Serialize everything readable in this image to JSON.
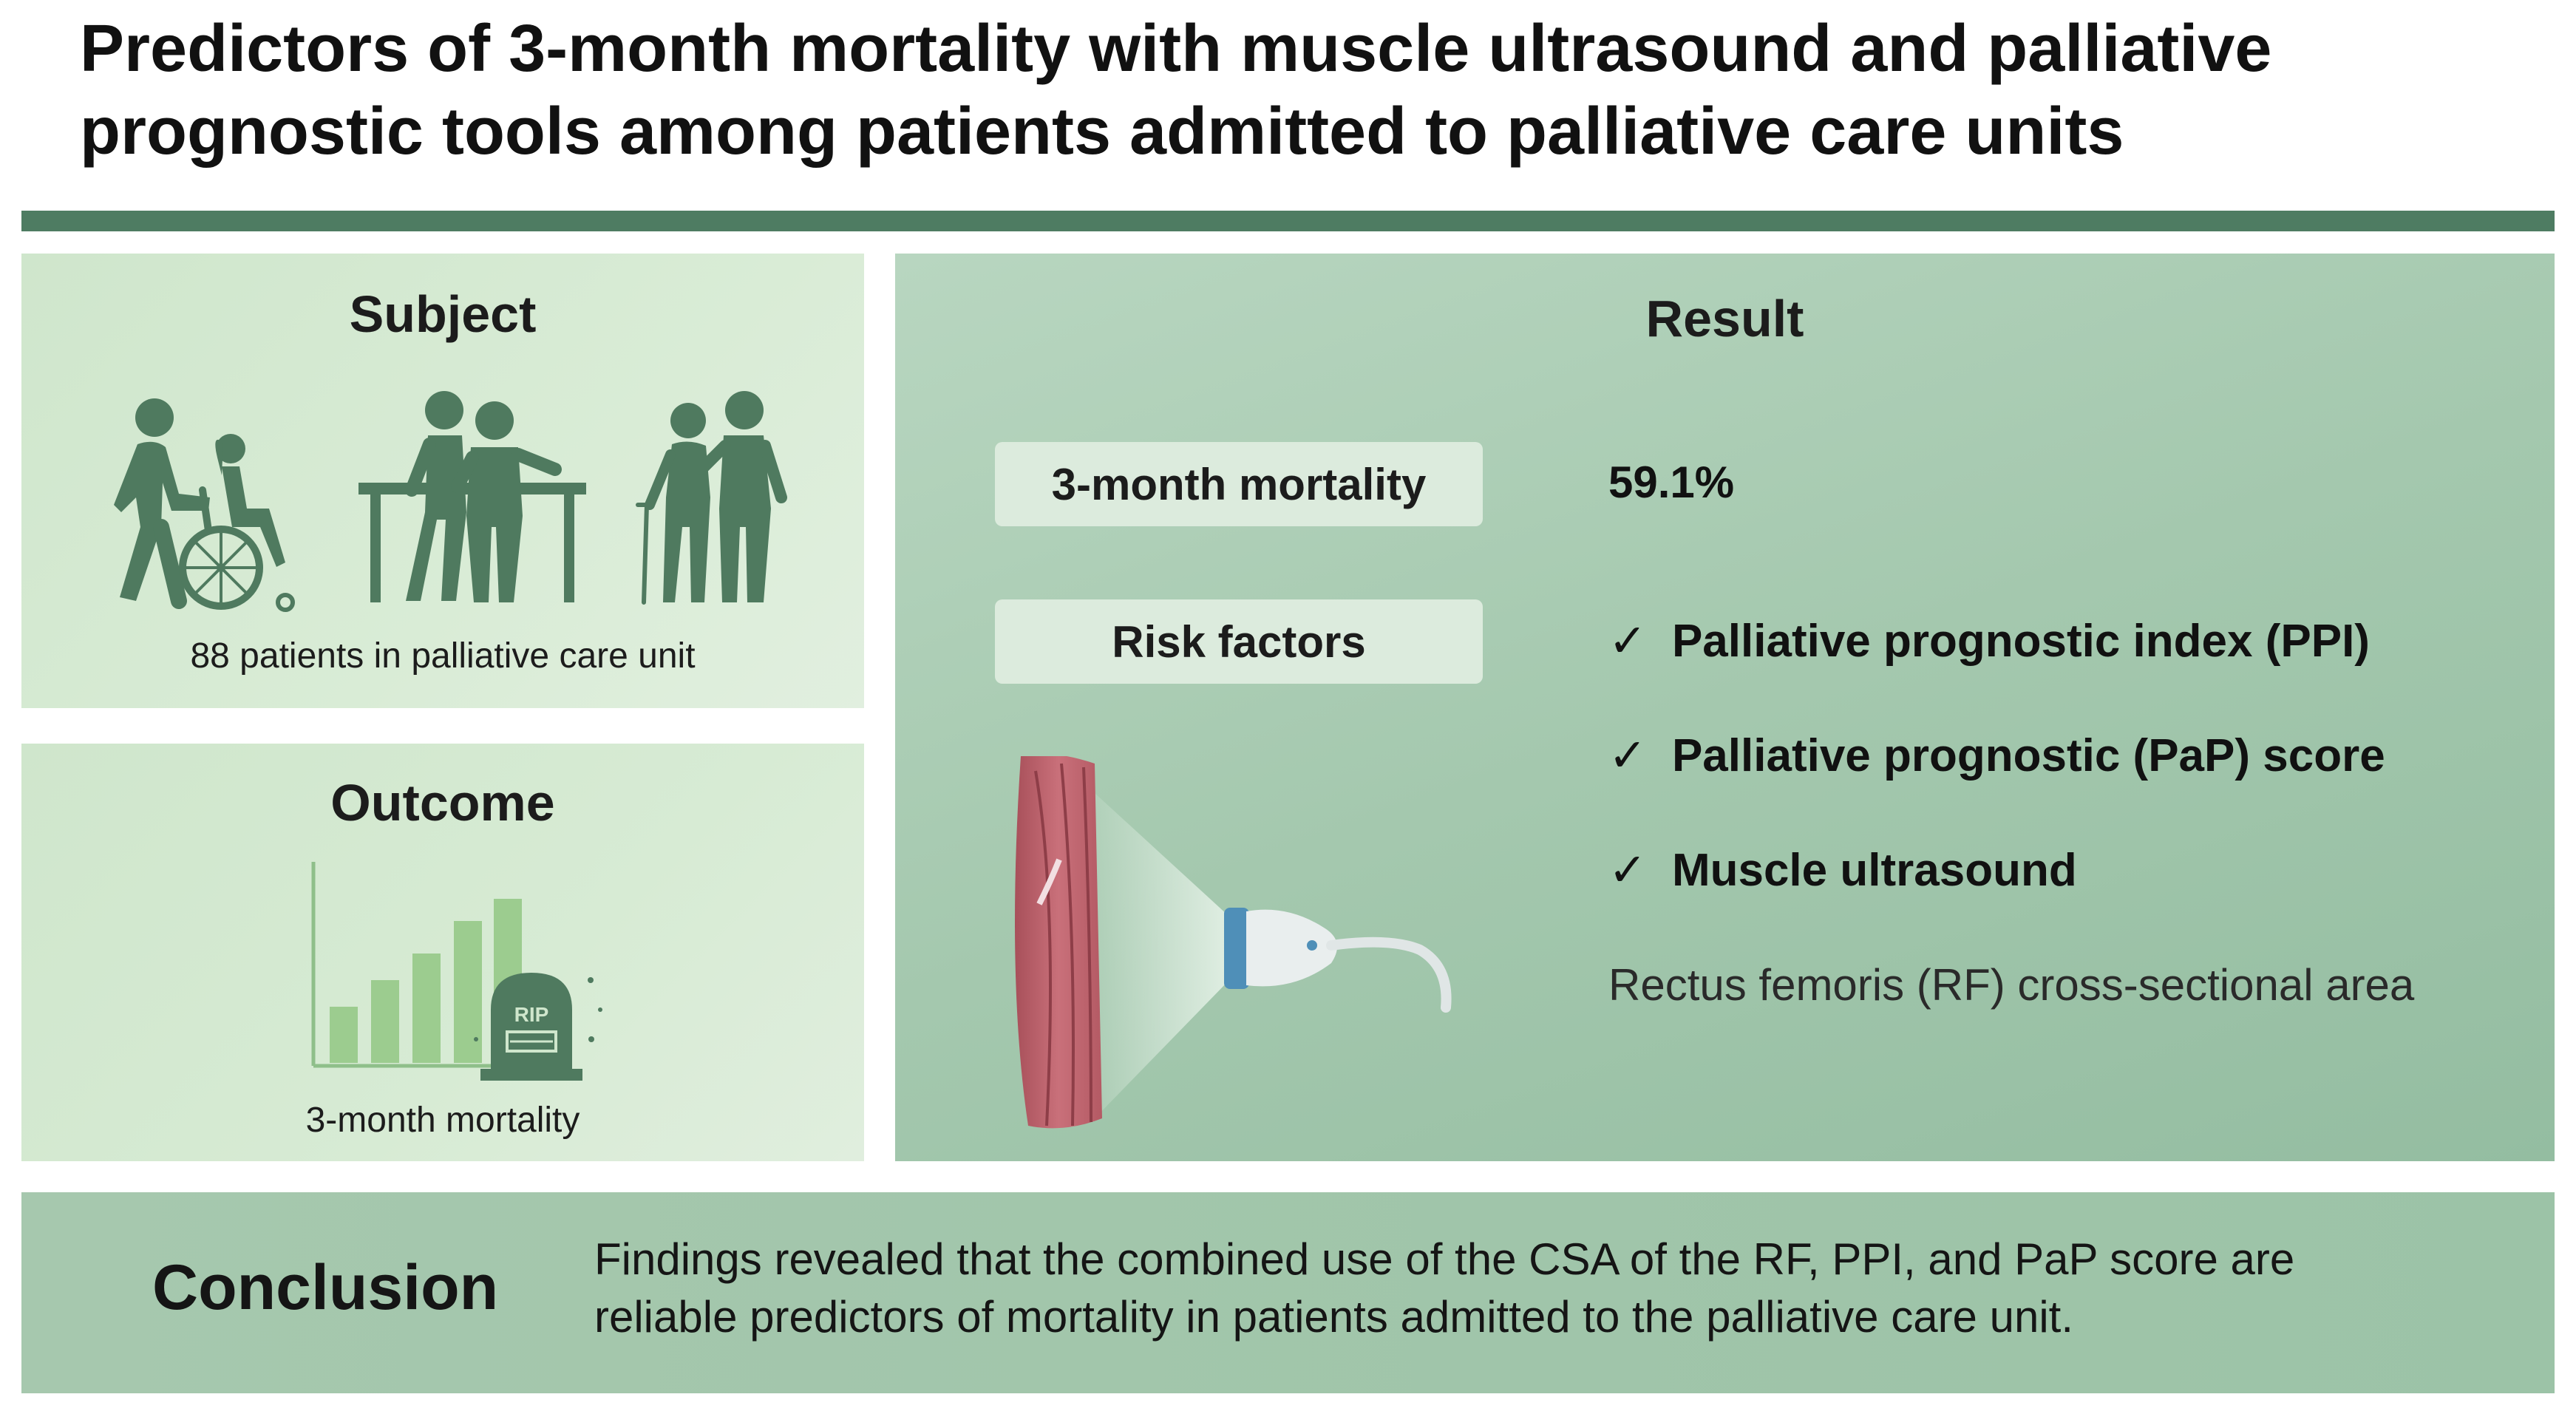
{
  "title": {
    "line1": "Predictors of 3-month mortality with muscle ultrasound and palliative",
    "line2": "prognostic tools among patients admitted to palliative care units"
  },
  "subject": {
    "heading": "Subject",
    "caption": "88 patients in palliative care unit",
    "icons": [
      "wheelchair-care-icon",
      "rehabilitation-bars-icon",
      "walking-assistance-icon"
    ]
  },
  "outcome": {
    "heading": "Outcome",
    "caption": "3-month mortality",
    "chart_icon": "rising-bar-chart-icon",
    "tombstone_text": "RIP"
  },
  "result": {
    "heading": "Result",
    "mortality_label": "3-month mortality",
    "mortality_value": "59.1%",
    "risk_label": "Risk factors",
    "check_mark": "✓",
    "risk_factors": [
      "Palliative prognostic index (PPI)",
      "Palliative prognostic (PaP) score",
      "Muscle ultrasound"
    ],
    "rf_note": "Rectus femoris (RF) cross-sectional area",
    "illustration": "thigh-ultrasound-probe-icon"
  },
  "conclusion": {
    "heading": "Conclusion",
    "text_line1": "Findings revealed that the combined use of the CSA of the RF, PPI, and PaP score are",
    "text_line2": "reliable predictors of mortality in patients admitted to the palliative care unit."
  },
  "colors": {
    "accent": "#4e7c62",
    "icon_green": "#4f7a5f",
    "panel_light": "#d6eAd3",
    "panel_result": "#a4c8ae",
    "pill": "#dcebdd",
    "bar_light": "#9ccc8f"
  }
}
